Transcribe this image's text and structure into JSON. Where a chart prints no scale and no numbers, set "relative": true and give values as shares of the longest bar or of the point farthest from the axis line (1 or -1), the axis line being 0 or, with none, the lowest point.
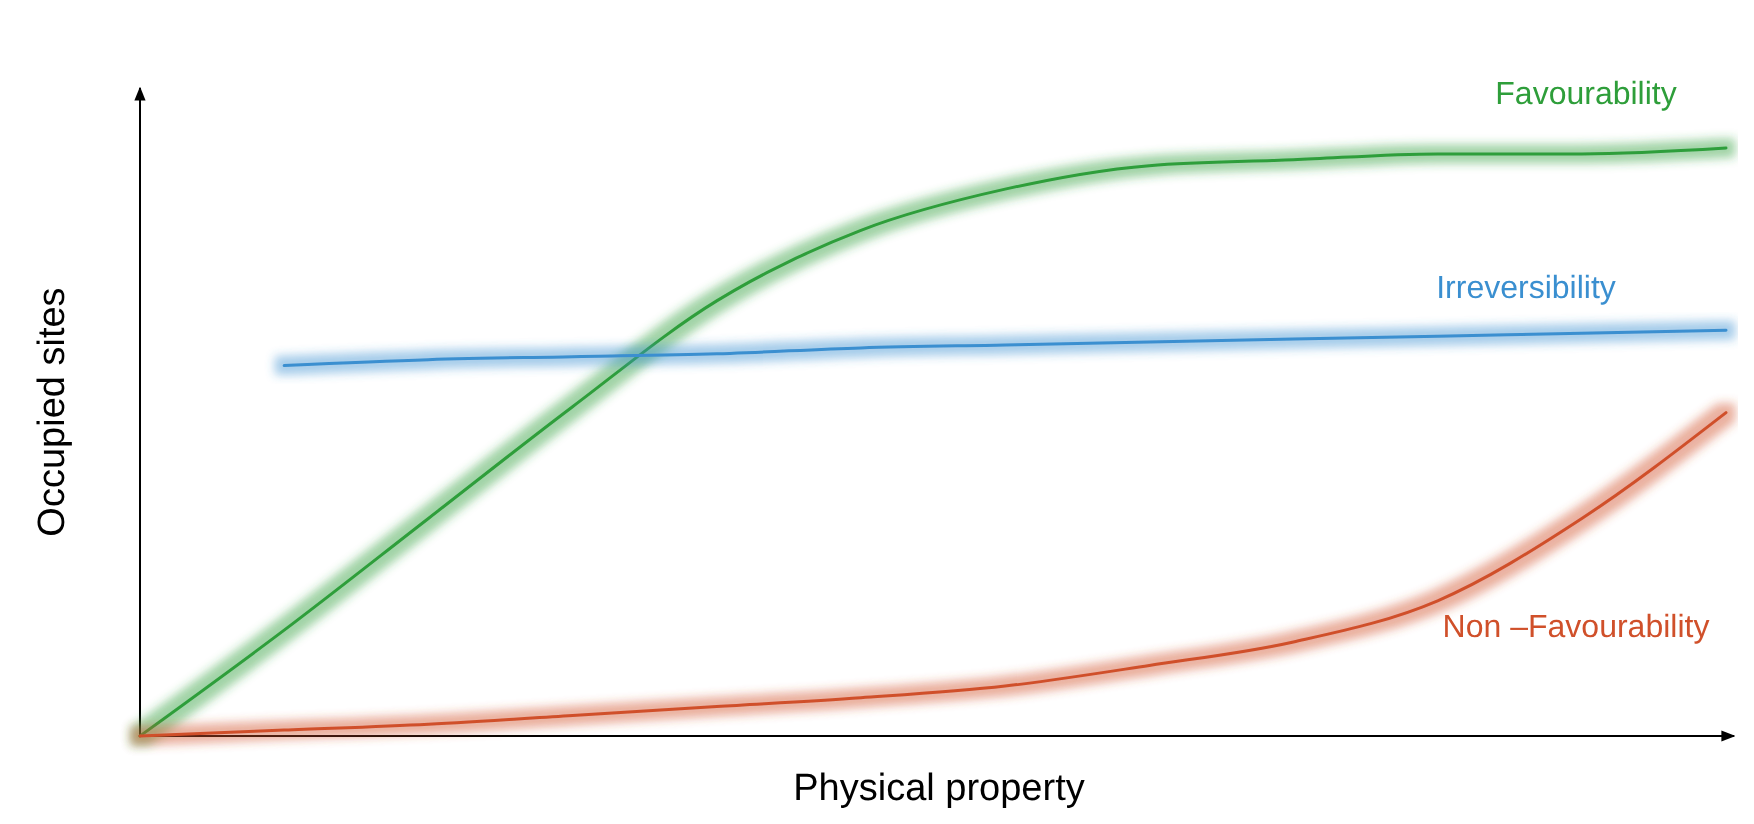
{
  "chart_data": {
    "type": "line",
    "relative": true,
    "xlabel": "Physical property",
    "ylabel": "Occupied sites",
    "categories": [
      null,
      null,
      null,
      null,
      null,
      null,
      null,
      null,
      null,
      null,
      null,
      null
    ],
    "series": [
      {
        "name": "Favourability",
        "color": "#2e9e3a",
        "values": [
          0,
          0.18,
          0.37,
          0.56,
          0.74,
          0.86,
          0.93,
          0.97,
          0.98,
          0.99,
          0.99,
          1
        ]
      },
      {
        "name": "Irreversibility",
        "color": "#3a8fd0",
        "values": [
          null,
          0.63,
          0.64,
          0.645,
          0.65,
          0.66,
          0.665,
          0.67,
          0.675,
          0.68,
          0.685,
          0.69
        ]
      },
      {
        "name": "Non –Favourability",
        "color": "#d0502a",
        "values": [
          0,
          0.01,
          0.02,
          0.035,
          0.05,
          0.065,
          0.085,
          0.12,
          0.16,
          0.23,
          0.37,
          0.55
        ]
      }
    ],
    "grid": false,
    "legend": false,
    "marker": "none",
    "line_style": "solid"
  }
}
